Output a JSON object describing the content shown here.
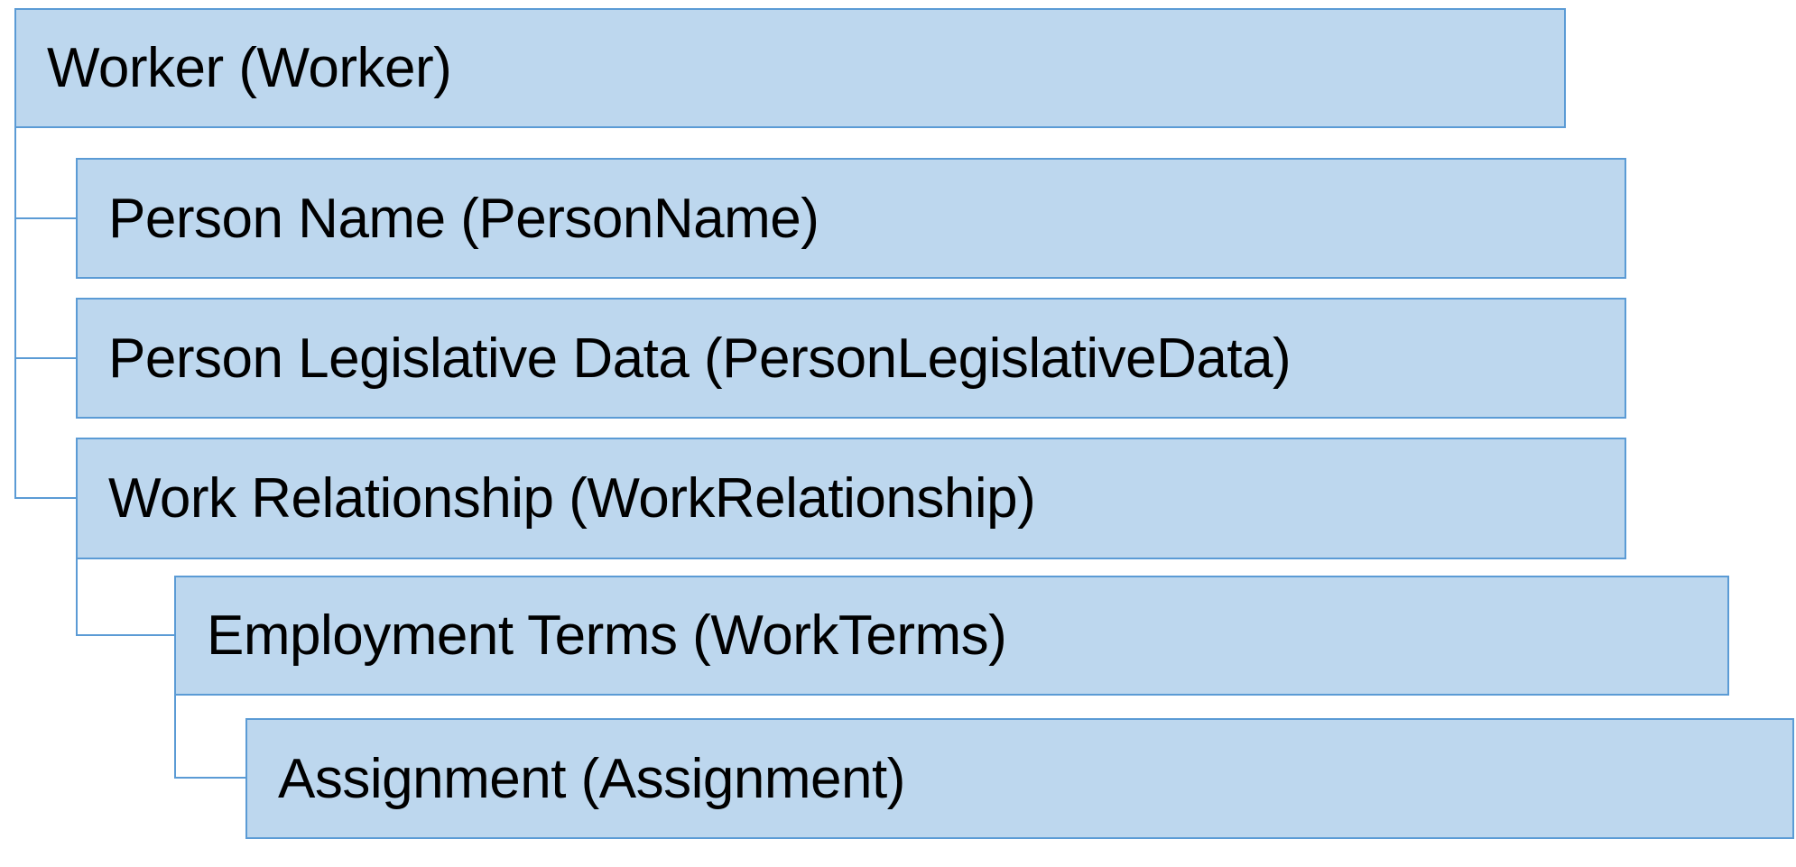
{
  "colors": {
    "fill": "#BDD7EE",
    "border": "#5B9BD5",
    "connector": "#5B9BD5"
  },
  "nodes": [
    {
      "label": "Worker (Worker)",
      "level": 0
    },
    {
      "label": "Person Name (PersonName)",
      "level": 1,
      "parent": "Worker (Worker)"
    },
    {
      "label": "Person Legislative Data (PersonLegislativeData)",
      "level": 1,
      "parent": "Worker (Worker)"
    },
    {
      "label": "Work Relationship (WorkRelationship)",
      "level": 1,
      "parent": "Worker (Worker)"
    },
    {
      "label": "Employment Terms (WorkTerms)",
      "level": 2,
      "parent": "Work Relationship (WorkRelationship)"
    },
    {
      "label": "Assignment (Assignment)",
      "level": 3,
      "parent": "Employment Terms (WorkTerms)"
    }
  ]
}
